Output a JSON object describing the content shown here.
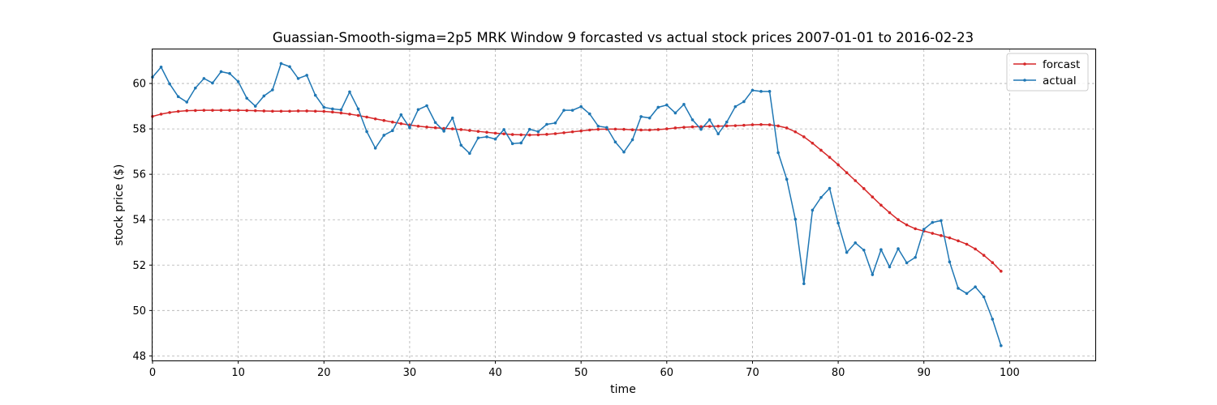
{
  "chart_data": {
    "type": "line",
    "title": "Guassian-Smooth-sigma=2p5 MRK Window 9 forcasted vs actual stock prices 2007-01-01 to 2016-02-23",
    "xlabel": "time",
    "ylabel": "stock price ($)",
    "xlim": [
      0,
      110
    ],
    "ylim": [
      47.8,
      61.5
    ],
    "x_ticks": [
      0,
      10,
      20,
      30,
      40,
      50,
      60,
      70,
      80,
      90,
      100
    ],
    "y_ticks": [
      48,
      50,
      52,
      54,
      56,
      58,
      60
    ],
    "grid": true,
    "legend_position": "top-right",
    "x": [
      0,
      1,
      2,
      3,
      4,
      5,
      6,
      7,
      8,
      9,
      10,
      11,
      12,
      13,
      14,
      15,
      16,
      17,
      18,
      19,
      20,
      21,
      22,
      23,
      24,
      25,
      26,
      27,
      28,
      29,
      30,
      31,
      32,
      33,
      34,
      35,
      36,
      37,
      38,
      39,
      40,
      41,
      42,
      43,
      44,
      45,
      46,
      47,
      48,
      49,
      50,
      51,
      52,
      53,
      54,
      55,
      56,
      57,
      58,
      59,
      60,
      61,
      62,
      63,
      64,
      65,
      66,
      67,
      68,
      69,
      70,
      71,
      72,
      73,
      74,
      75,
      76,
      77,
      78,
      79,
      80,
      81,
      82,
      83,
      84,
      85,
      86,
      87,
      88,
      89,
      90,
      91,
      92,
      93,
      94,
      95,
      96,
      97,
      98,
      99
    ],
    "series": [
      {
        "name": "forcast",
        "color": "#d62728",
        "values": [
          58.55,
          58.65,
          58.72,
          58.77,
          58.8,
          58.81,
          58.82,
          58.82,
          58.82,
          58.82,
          58.82,
          58.81,
          58.8,
          58.79,
          58.78,
          58.78,
          58.78,
          58.79,
          58.79,
          58.78,
          58.77,
          58.74,
          58.7,
          58.65,
          58.59,
          58.52,
          58.44,
          58.37,
          58.3,
          58.23,
          58.17,
          58.12,
          58.08,
          58.05,
          58.02,
          58.0,
          57.97,
          57.93,
          57.89,
          57.85,
          57.81,
          57.78,
          57.75,
          57.74,
          57.73,
          57.74,
          57.76,
          57.79,
          57.83,
          57.87,
          57.91,
          57.95,
          57.98,
          57.99,
          57.99,
          57.98,
          57.96,
          57.95,
          57.95,
          57.97,
          58.0,
          58.04,
          58.07,
          58.09,
          58.1,
          58.11,
          58.12,
          58.13,
          58.14,
          58.16,
          58.18,
          58.19,
          58.18,
          58.13,
          58.04,
          57.87,
          57.65,
          57.37,
          57.06,
          56.75,
          56.42,
          56.07,
          55.72,
          55.37,
          55.0,
          54.64,
          54.31,
          54.0,
          53.77,
          53.6,
          53.5,
          53.4,
          53.3,
          53.2,
          53.07,
          52.92,
          52.71,
          52.43,
          52.11,
          51.73
        ]
      },
      {
        "name": "actual",
        "color": "#1f77b4",
        "values": [
          60.28,
          60.72,
          59.98,
          59.42,
          59.18,
          59.8,
          60.22,
          60.02,
          60.52,
          60.44,
          60.08,
          59.35,
          59.0,
          59.45,
          59.72,
          60.88,
          60.74,
          60.22,
          60.36,
          59.48,
          58.95,
          58.88,
          58.84,
          59.63,
          58.88,
          57.88,
          57.15,
          57.72,
          57.92,
          58.62,
          58.05,
          58.85,
          59.02,
          58.28,
          57.9,
          58.48,
          57.28,
          56.92,
          57.6,
          57.65,
          57.55,
          57.97,
          57.35,
          57.38,
          57.98,
          57.88,
          58.2,
          58.26,
          58.82,
          58.82,
          58.98,
          58.66,
          58.12,
          58.06,
          57.42,
          56.98,
          57.52,
          58.54,
          58.48,
          58.95,
          59.05,
          58.7,
          59.08,
          58.4,
          57.98,
          58.4,
          57.78,
          58.3,
          58.98,
          59.2,
          59.7,
          59.65,
          59.65,
          56.95,
          55.78,
          54.02,
          51.18,
          54.42,
          54.98,
          55.38,
          53.85,
          52.56,
          52.98,
          52.66,
          51.58,
          52.68,
          51.92,
          52.72,
          52.1,
          52.34,
          53.58,
          53.88,
          53.96,
          52.14,
          50.98,
          50.75,
          51.04,
          50.6,
          49.62,
          48.45
        ]
      }
    ]
  }
}
